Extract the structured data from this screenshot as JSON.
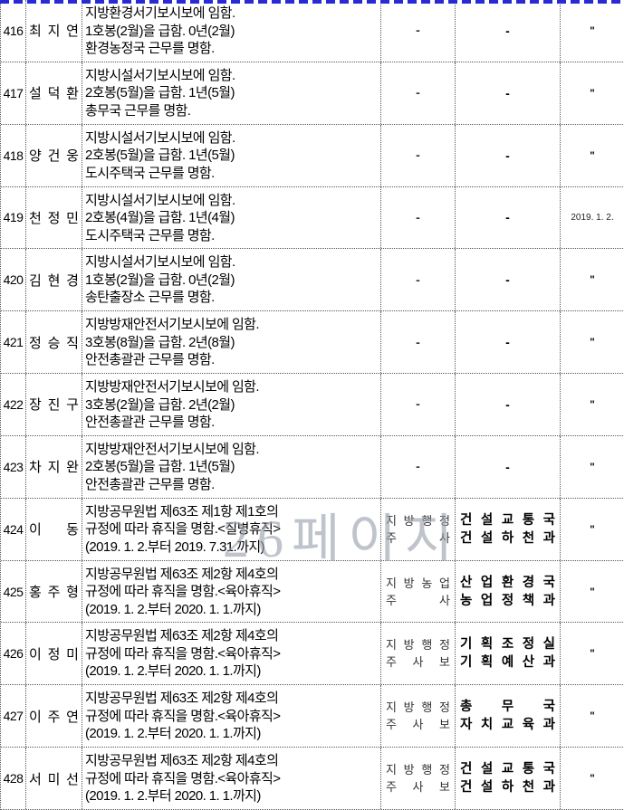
{
  "watermark": "26페이지",
  "page_break_color": "#2a2ad2",
  "rows": [
    {
      "no": "416",
      "name": "최 지 연",
      "desc": [
        "지방환경서기보시보에 임함.",
        "1호봉(2월)을 급함. 0년(2월)",
        "환경농정국 근무를 명함."
      ],
      "rank_dash": "-",
      "dept_dash": "-",
      "date_mark": "\""
    },
    {
      "no": "417",
      "name": "설 덕 환",
      "desc": [
        "지방시설서기보시보에 임함.",
        "2호봉(5월)을 급함. 1년(5월)",
        "총무국 근무를 명함."
      ],
      "rank_dash": "-",
      "dept_dash": "-",
      "date_mark": "\""
    },
    {
      "no": "418",
      "name": "양 건 웅",
      "desc": [
        "지방시설서기보시보에 임함.",
        "2호봉(5월)을 급함. 1년(5월)",
        "도시주택국 근무를 명함."
      ],
      "rank_dash": "-",
      "dept_dash": "-",
      "date_mark": "\""
    },
    {
      "no": "419",
      "name": "천 정 민",
      "desc": [
        "지방시설서기보시보에 임함.",
        "2호봉(4월)을 급함. 1년(4월)",
        "도시주택국 근무를 명함."
      ],
      "rank_dash": "-",
      "dept_dash": "-",
      "date_text": "2019. 1. 2."
    },
    {
      "no": "420",
      "name": "김 현 경",
      "desc": [
        "지방시설서기보시보에 임함.",
        "1호봉(2월)을 급함. 0년(2월)",
        "송탄출장소 근무를 명함."
      ],
      "rank_dash": "-",
      "dept_dash": "-",
      "date_mark": "\""
    },
    {
      "no": "421",
      "name": "정 승 직",
      "desc": [
        "지방방재안전서기보시보에 임함.",
        "3호봉(8월)을 급함. 2년(8월)",
        "안전총괄관 근무를 명함."
      ],
      "rank_dash": "-",
      "dept_dash": "-",
      "date_mark": "\""
    },
    {
      "no": "422",
      "name": "장 진 구",
      "desc": [
        "지방방재안전서기보시보에 임함.",
        "3호봉(2월)을 급함. 2년(2월)",
        "안전총괄관 근무를 명함."
      ],
      "rank_dash": "-",
      "dept_dash": "-",
      "date_mark": "\""
    },
    {
      "no": "423",
      "name": "차 지 완",
      "desc": [
        "지방방재안전서기보시보에 임함.",
        "2호봉(5월)을 급함. 1년(5월)",
        "안전총괄관 근무를 명함."
      ],
      "rank_dash": "-",
      "dept_dash": "-",
      "date_mark": "\""
    },
    {
      "no": "424",
      "name": "이 동",
      "desc": [
        "지방공무원법 제63조 제1항 제1호의",
        "규정에 따라 휴직을 명함.<질병휴직>",
        "(2019. 1. 2.부터 2019. 7.31.까지)"
      ],
      "rank": [
        "지 방 행 정",
        "주 사"
      ],
      "dept": [
        "건 설 교 통 국",
        "건 설 하 천 과"
      ],
      "date_mark": "\""
    },
    {
      "no": "425",
      "name": "홍 주 형",
      "desc": [
        "지방공무원법 제63조 제2항 제4호의",
        "규정에 따라 휴직을 명함.<육아휴직>",
        "(2019. 1. 2.부터 2020. 1. 1.까지)"
      ],
      "rank": [
        "지 방 농 업",
        "주 사"
      ],
      "dept": [
        "산 업 환 경 국",
        "농 업 정 책 과"
      ],
      "date_mark": "\""
    },
    {
      "no": "426",
      "name": "이 정 미",
      "desc": [
        "지방공무원법 제63조 제2항 제4호의",
        "규정에 따라 휴직을 명함.<육아휴직>",
        "(2019. 1. 2.부터 2020. 1. 1.까지)"
      ],
      "rank": [
        "지 방 행 정",
        "주 사 보"
      ],
      "dept": [
        "기 획 조 정 실",
        "기 획 예 산 과"
      ],
      "date_mark": "\""
    },
    {
      "no": "427",
      "name": "이 주 연",
      "desc": [
        "지방공무원법 제63조 제2항 제4호의",
        "규정에 따라 휴직을 명함.<육아휴직>",
        "(2019. 1. 2.부터 2020. 1. 1.까지)"
      ],
      "rank": [
        "지 방 행 정",
        "주 사 보"
      ],
      "dept": [
        "총 무 국",
        "자 치 교 육 과"
      ],
      "date_mark": "\""
    },
    {
      "no": "428",
      "name": "서 미 선",
      "desc": [
        "지방공무원법 제63조 제2항 제4호의",
        "규정에 따라 휴직을 명함.<육아휴직>",
        "(2019. 1. 2.부터 2020. 1. 1.까지)"
      ],
      "rank": [
        "지 방 행 정",
        "주 사 보"
      ],
      "dept": [
        "건 설 교 통 국",
        "건 설 하 천 과"
      ],
      "date_mark": "\""
    }
  ]
}
